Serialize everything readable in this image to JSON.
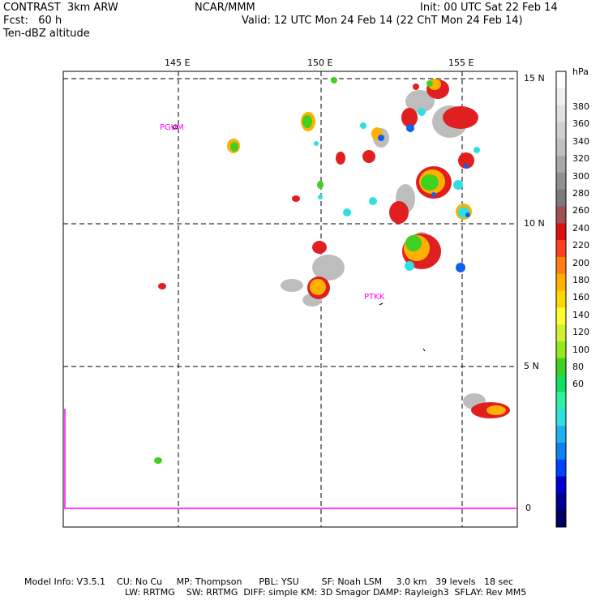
{
  "header": {
    "left1": "CONTRAST  3km ARW",
    "left2": "Fcst:   60 h",
    "left3": "Ten-dBZ altitude",
    "center1": "NCAR/MMM",
    "right1": "Init: 00 UTC Sat 22 Feb 14",
    "right2": "Valid: 12 UTC Mon 24 Feb 14 (22 ChT Mon 24 Feb 14)"
  },
  "map": {
    "lon_labels": [
      "145 E",
      "150 E",
      "155 E"
    ],
    "lat_labels": [
      "15 N",
      "10 N",
      "5 N",
      "0"
    ],
    "stations": [
      "PGUM",
      "PTKK"
    ],
    "grid": "dashed"
  },
  "colorbar": {
    "unit": "hPa",
    "labels": [
      "380",
      "360",
      "340",
      "320",
      "300",
      "280",
      "260",
      "240",
      "220",
      "200",
      "180",
      "160",
      "140",
      "120",
      "100",
      "80",
      "60"
    ],
    "colors": [
      "#ffffff",
      "#f0f0f0",
      "#e0e0e0",
      "#d0d0d0",
      "#c0c0c0",
      "#a8a8a8",
      "#909090",
      "#7a7a7a",
      "#a05050",
      "#dd1010",
      "#ff4020",
      "#ff7f10",
      "#ffb000",
      "#ffd800",
      "#ffff30",
      "#d0f030",
      "#90e820",
      "#40d020",
      "#10e060",
      "#30f0a0",
      "#30e0e0",
      "#20b0f0",
      "#1080f0",
      "#0040ff",
      "#0000d0",
      "#000090",
      "#000060"
    ]
  },
  "footer": {
    "line1": "Model Info: V3.5.1    CU: No Cu     MP: Thompson      PBL: YSU        SF: Noah LSM     3.0 km   39 levels   18 sec",
    "line2": "LW: RRTMG    SW: RRTMG  DIFF: simple KM: 3D Smagor DAMP: Rayleigh3  SFLAY: Rev MM5"
  }
}
